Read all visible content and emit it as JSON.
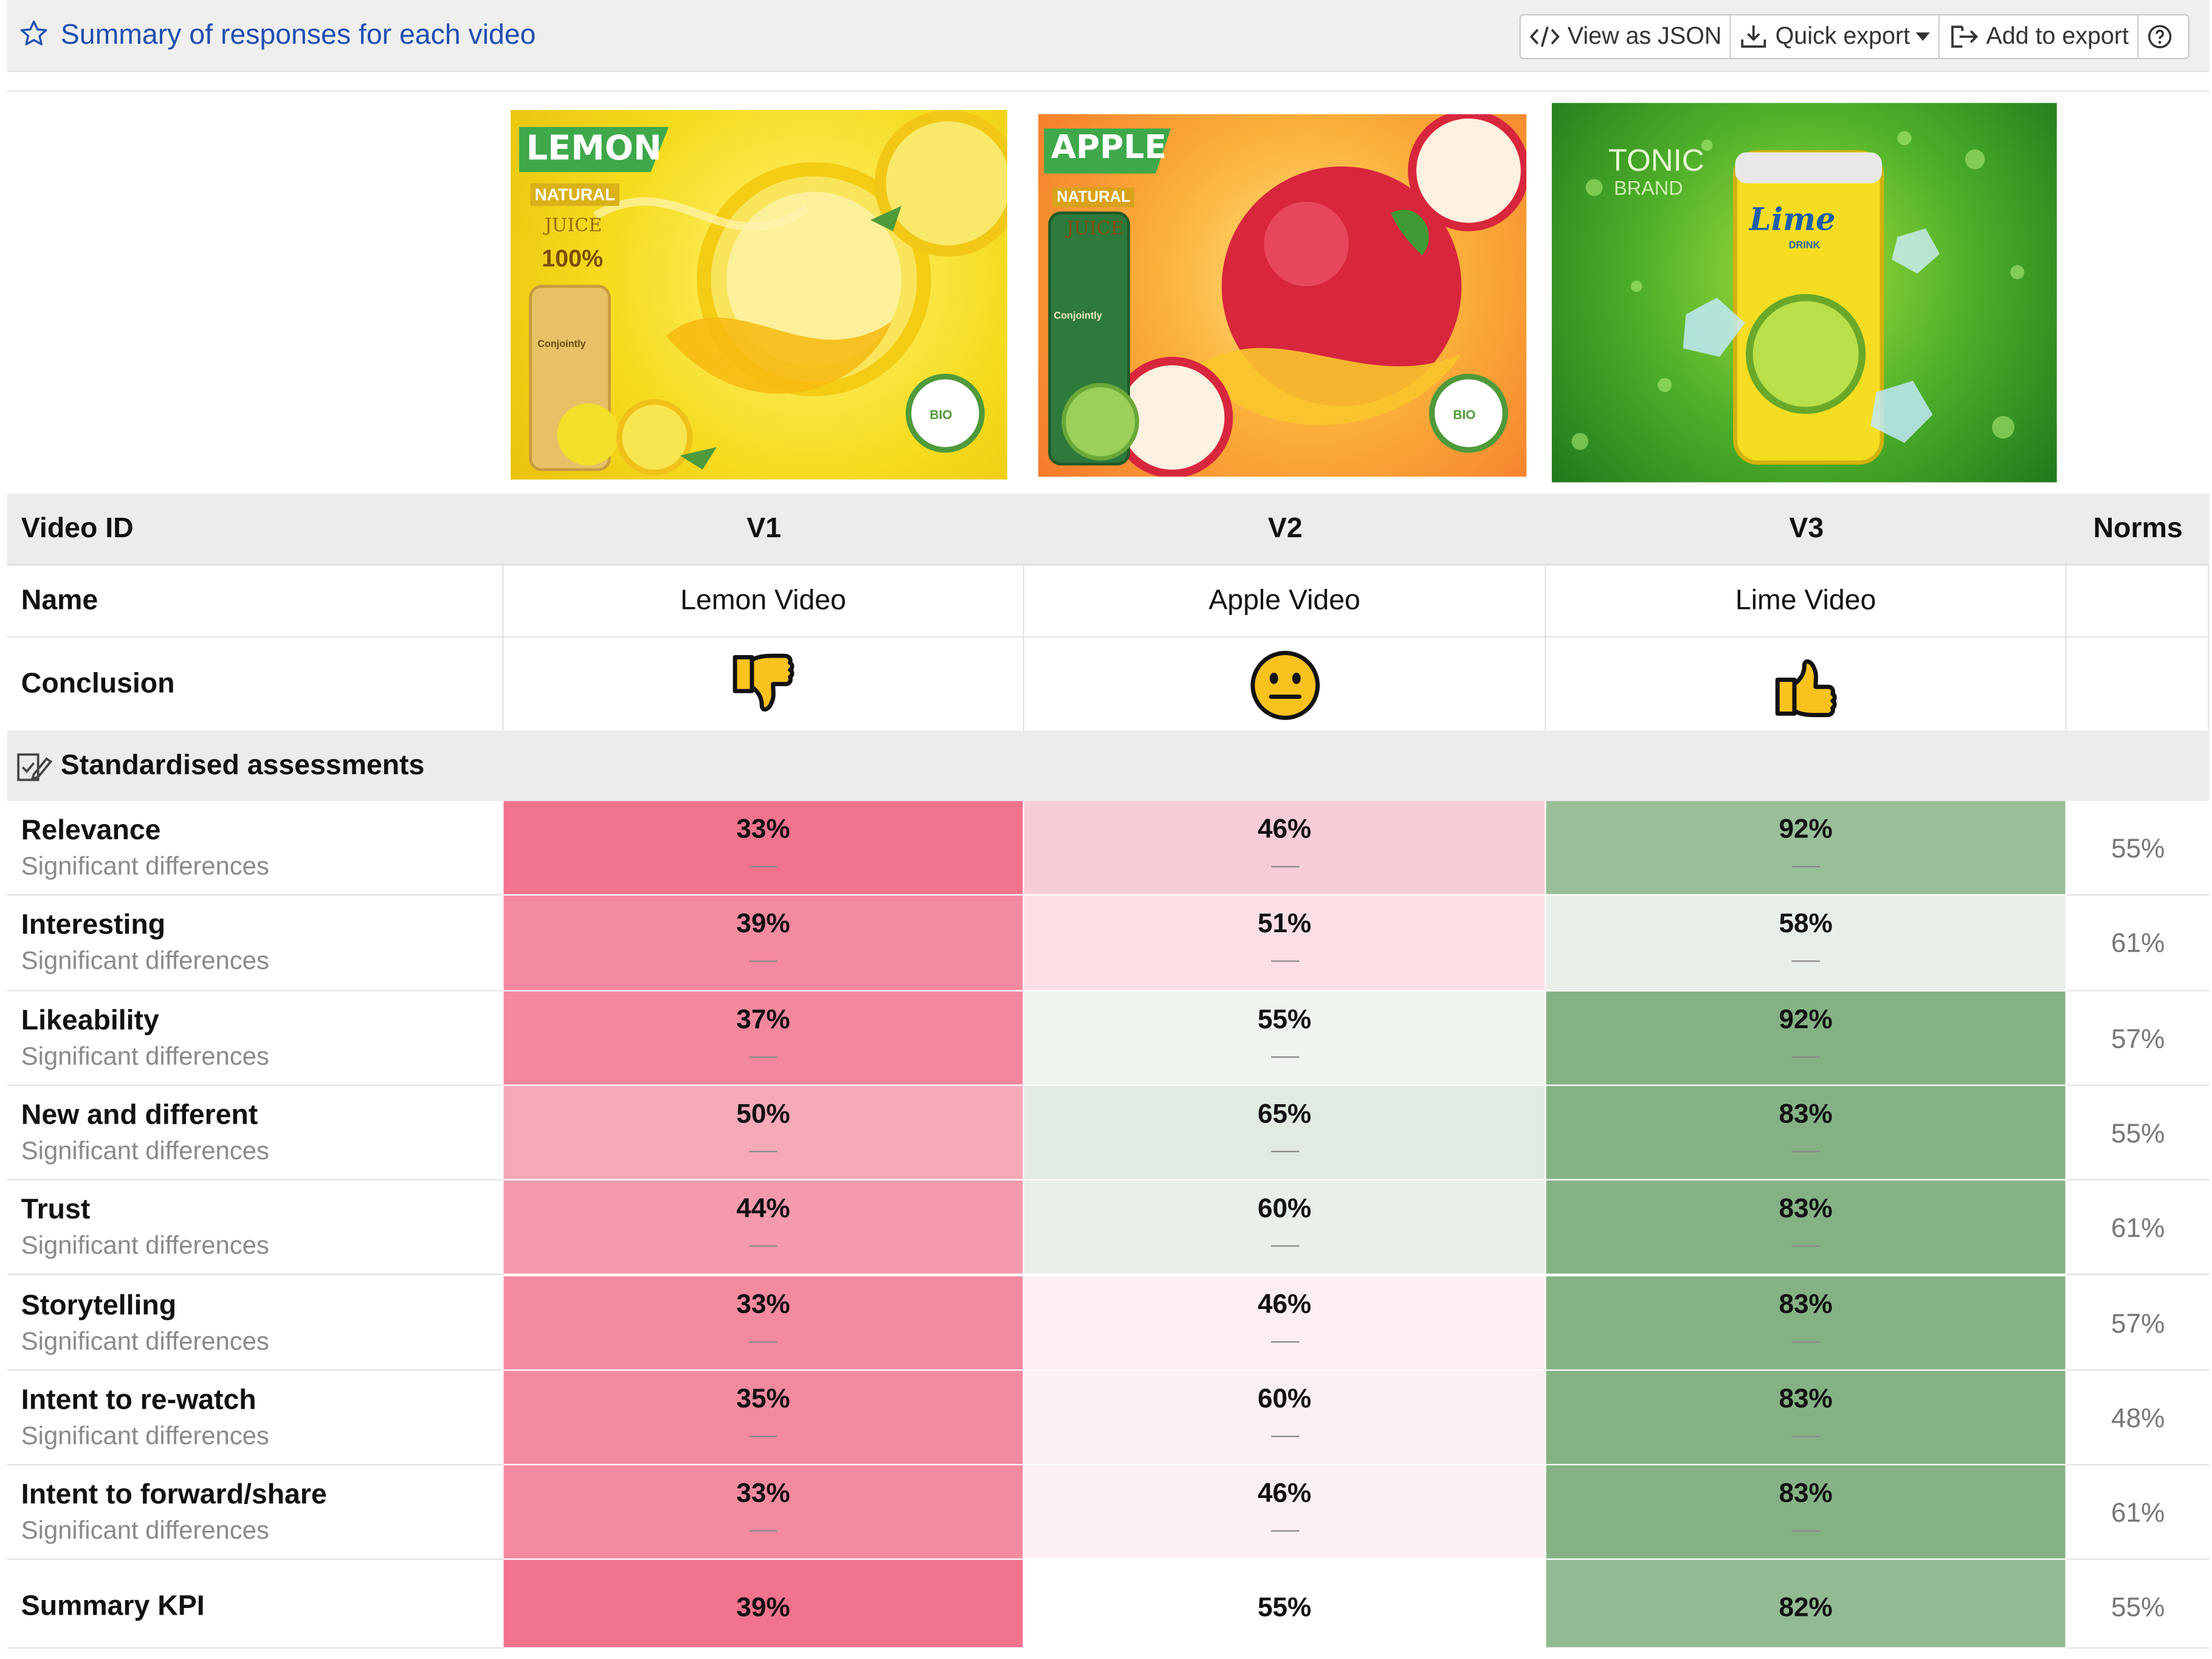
{
  "header": {
    "title": "Summary of responses for each video",
    "buttons": {
      "view_json": "View as JSON",
      "quick_export": "Quick export",
      "add_export": "Add to export"
    }
  },
  "thumbnails": [
    {
      "brand": "LEMON",
      "sub": "NATURAL",
      "sub2": "JUICE",
      "pct": "100%",
      "seal": "BIO",
      "can_label": "Conjointly"
    },
    {
      "brand": "APPLE",
      "sub": "NATURAL",
      "sub2": "JUICE",
      "seal": "BIO",
      "can_label": "Conjointly"
    },
    {
      "brand": "TONIC",
      "sub": "BRAND",
      "can_label": "Lime",
      "can_sub": "DRINK"
    }
  ],
  "columns": {
    "first": "Video ID",
    "videos": [
      "V1",
      "V2",
      "V3"
    ],
    "norms": "Norms"
  },
  "name_row": {
    "label": "Name",
    "values": [
      "Lemon Video",
      "Apple Video",
      "Lime Video"
    ]
  },
  "conclusion_row": {
    "label": "Conclusion",
    "icons": [
      "thumbs-down-icon",
      "neutral-face-icon",
      "thumbs-up-icon"
    ]
  },
  "section": {
    "label": "Standardised assessments"
  },
  "sub_label": "Significant differences",
  "dash": "—",
  "metrics": [
    {
      "name": "Relevance",
      "values": [
        "33%",
        "46%",
        "92%"
      ],
      "colors": [
        "#f2738e",
        "#f9cdd7",
        "#99bf99"
      ],
      "norm": "55%"
    },
    {
      "name": "Interesting",
      "values": [
        "39%",
        "51%",
        "58%"
      ],
      "colors": [
        "#f48aa0",
        "#fbdfe5",
        "#e8efe8"
      ],
      "norm": "61%"
    },
    {
      "name": "Likeability",
      "values": [
        "37%",
        "55%",
        "92%"
      ],
      "colors": [
        "#f3879d",
        "#eff4ef",
        "#85b285"
      ],
      "norm": "57%"
    },
    {
      "name": "New and different",
      "values": [
        "50%",
        "65%",
        "83%"
      ],
      "colors": [
        "#f5a9b9",
        "#e1ebe1",
        "#85b285"
      ],
      "norm": "55%"
    },
    {
      "name": "Trust",
      "values": [
        "44%",
        "60%",
        "83%"
      ],
      "colors": [
        "#f49aac",
        "#e9f0e9",
        "#85b285"
      ],
      "norm": "61%"
    },
    {
      "name": "Storytelling",
      "values": [
        "33%",
        "46%",
        "83%"
      ],
      "colors": [
        "#f48aa0",
        "#fdeef1",
        "#85b285"
      ],
      "norm": "57%"
    },
    {
      "name": "Intent to re-watch",
      "values": [
        "35%",
        "60%",
        "83%"
      ],
      "colors": [
        "#f48aa0",
        "#fdf0f3",
        "#85b285"
      ],
      "norm": "48%"
    },
    {
      "name": "Intent to forward/share",
      "values": [
        "33%",
        "46%",
        "83%"
      ],
      "colors": [
        "#f48aa0",
        "#fdf0f3",
        "#85b285"
      ],
      "norm": "61%"
    }
  ],
  "summary": {
    "name": "Summary KPI",
    "values": [
      "39%",
      "55%",
      "82%"
    ],
    "colors": [
      "#f2738e",
      "#ffffff",
      "#93bb93"
    ],
    "norm": "55%"
  }
}
